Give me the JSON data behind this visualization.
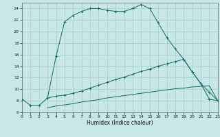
{
  "xlabel": "Humidex (Indice chaleur)",
  "bg_color": "#c8e8e8",
  "grid_color": "#a0cccc",
  "line_color": "#1a6e6a",
  "xlim": [
    0,
    23
  ],
  "ylim": [
    6,
    25
  ],
  "xticks": [
    0,
    1,
    2,
    3,
    4,
    5,
    6,
    7,
    8,
    9,
    10,
    11,
    12,
    13,
    14,
    15,
    16,
    17,
    18,
    19,
    20,
    21,
    22,
    23
  ],
  "yticks": [
    6,
    8,
    10,
    12,
    14,
    16,
    18,
    20,
    22,
    24
  ],
  "line1_x": [
    0,
    1,
    2,
    3,
    4,
    5,
    6,
    7,
    8,
    9,
    10,
    11,
    12,
    13,
    14,
    15,
    16,
    17,
    18,
    19,
    20,
    21,
    22,
    23
  ],
  "line1_y": [
    8.3,
    7.2,
    7.2,
    8.5,
    15.7,
    21.7,
    22.8,
    23.5,
    24.0,
    24.0,
    23.7,
    23.5,
    23.5,
    24.0,
    24.7,
    24.0,
    21.5,
    19.0,
    17.0,
    15.2,
    13.0,
    11.0,
    8.3,
    8.0
  ],
  "line2_x": [
    3,
    4,
    5,
    6,
    7,
    8,
    9,
    10,
    11,
    12,
    13,
    14,
    15,
    16,
    17,
    18,
    19,
    20,
    21,
    22,
    23
  ],
  "line2_y": [
    8.5,
    8.8,
    9.0,
    9.3,
    9.7,
    10.2,
    10.7,
    11.2,
    11.7,
    12.1,
    12.6,
    13.1,
    13.5,
    14.0,
    14.4,
    14.8,
    15.2,
    13.0,
    11.0,
    9.5,
    8.0
  ],
  "line3_x": [
    3,
    4,
    5,
    6,
    7,
    8,
    9,
    10,
    11,
    12,
    13,
    14,
    15,
    16,
    17,
    18,
    19,
    20,
    21,
    22,
    23
  ],
  "line3_y": [
    6.8,
    7.1,
    7.3,
    7.5,
    7.8,
    8.0,
    8.2,
    8.5,
    8.7,
    8.9,
    9.1,
    9.3,
    9.5,
    9.7,
    9.9,
    10.1,
    10.2,
    10.4,
    10.5,
    10.6,
    8.0
  ]
}
